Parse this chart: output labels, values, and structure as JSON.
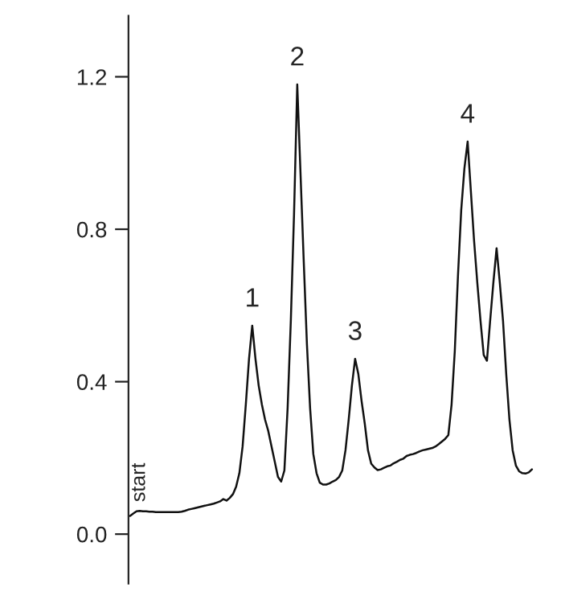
{
  "chart_data": {
    "type": "line",
    "tick_labels": "y",
    "grid": false,
    "marker": "none",
    "line_style": "solid",
    "categories": [
      null,
      null,
      null,
      null,
      null,
      null,
      null,
      null,
      null,
      null,
      null,
      null,
      null,
      null,
      null,
      null,
      null,
      null,
      null,
      null,
      null,
      null,
      null,
      null,
      null,
      null,
      null,
      null,
      null,
      null,
      null,
      null,
      null,
      null,
      null,
      null,
      null,
      null,
      null,
      null,
      null,
      null,
      null,
      null,
      null,
      null,
      null,
      null,
      null,
      null,
      null,
      null,
      null,
      null,
      null,
      null,
      null,
      null,
      null,
      null,
      null,
      null,
      null,
      null,
      null,
      null,
      null,
      null,
      null,
      null,
      null,
      null,
      null,
      null,
      null,
      null,
      null,
      null,
      null,
      null,
      null,
      null,
      null,
      null,
      null,
      null,
      null,
      null,
      null,
      null,
      null,
      null,
      null,
      null,
      null,
      null,
      null,
      null,
      null,
      null,
      null,
      null,
      null,
      null,
      null,
      null,
      null,
      null,
      null,
      null,
      null,
      null,
      null,
      null,
      null,
      null,
      null,
      null,
      null,
      null,
      null,
      null,
      null,
      null,
      null,
      null
    ],
    "series": [
      {
        "color": "#111111",
        "values": [
          0.048,
          0.054,
          0.06,
          0.061,
          0.06,
          0.06,
          0.059,
          0.059,
          0.058,
          0.058,
          0.058,
          0.058,
          0.058,
          0.058,
          0.058,
          0.058,
          0.059,
          0.061,
          0.064,
          0.066,
          0.068,
          0.07,
          0.072,
          0.074,
          0.076,
          0.078,
          0.08,
          0.083,
          0.086,
          0.092,
          0.088,
          0.095,
          0.105,
          0.125,
          0.16,
          0.23,
          0.34,
          0.46,
          0.547,
          0.46,
          0.39,
          0.34,
          0.3,
          0.27,
          0.23,
          0.19,
          0.15,
          0.138,
          0.167,
          0.33,
          0.56,
          0.84,
          1.18,
          0.95,
          0.72,
          0.5,
          0.33,
          0.21,
          0.16,
          0.135,
          0.13,
          0.13,
          0.133,
          0.138,
          0.142,
          0.15,
          0.167,
          0.22,
          0.3,
          0.39,
          0.46,
          0.42,
          0.35,
          0.29,
          0.22,
          0.185,
          0.175,
          0.168,
          0.17,
          0.174,
          0.178,
          0.18,
          0.186,
          0.19,
          0.195,
          0.198,
          0.205,
          0.208,
          0.21,
          0.213,
          0.217,
          0.22,
          0.222,
          0.224,
          0.226,
          0.23,
          0.236,
          0.243,
          0.25,
          0.26,
          0.34,
          0.48,
          0.68,
          0.85,
          0.96,
          1.03,
          0.9,
          0.77,
          0.66,
          0.56,
          0.47,
          0.455,
          0.56,
          0.66,
          0.75,
          0.66,
          0.56,
          0.42,
          0.3,
          0.22,
          0.18,
          0.165,
          0.16,
          0.159,
          0.162,
          0.17
        ]
      }
    ],
    "ylim": [
      -0.13,
      1.36
    ],
    "yticks": [
      {
        "value": 0,
        "label": "0.0"
      },
      {
        "value": 0.4,
        "label": "0.4"
      },
      {
        "value": 0.8,
        "label": "0.8"
      },
      {
        "value": 1.2,
        "label": "1.2"
      }
    ],
    "annotations": [
      {
        "text": "start",
        "y": 0.061
      },
      {
        "text": "1",
        "y": 0.547
      },
      {
        "text": "2",
        "y": 1.18
      },
      {
        "text": "3",
        "y": 0.46
      },
      {
        "text": "4",
        "y": 1.03
      }
    ]
  }
}
